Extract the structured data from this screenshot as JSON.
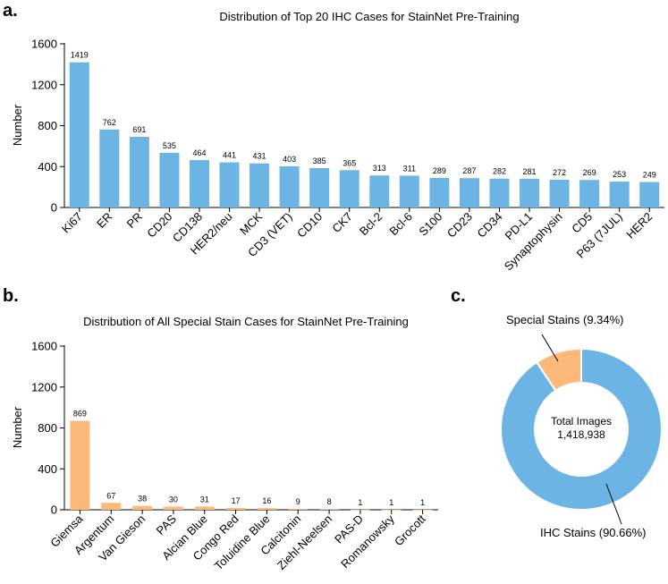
{
  "figure": {
    "panel_a_letter": "a.",
    "panel_b_letter": "b.",
    "panel_c_letter": "c."
  },
  "chart_data": [
    {
      "id": "a",
      "type": "bar",
      "title": "Distribution of Top 20 IHC Cases for StainNet Pre-Training",
      "xlabel": "",
      "ylabel": "Number",
      "ylim": [
        0,
        1600
      ],
      "yticks": [
        0,
        400,
        800,
        1200,
        1600
      ],
      "color": "#6cb4e4",
      "categories": [
        "Ki67",
        "ER",
        "PR",
        "CD20",
        "CD138",
        "HER2/neu",
        "MCK",
        "CD3 (VET)",
        "CD10",
        "CK7",
        "Bcl-2",
        "Bcl-6",
        "S100",
        "CD23",
        "CD34",
        "PD-L1",
        "Synaptophysin",
        "CD5",
        "P63 (7JUL)",
        "HER2"
      ],
      "values": [
        1419,
        762,
        691,
        535,
        464,
        441,
        431,
        403,
        385,
        365,
        313,
        311,
        289,
        287,
        282,
        281,
        272,
        269,
        253,
        249
      ]
    },
    {
      "id": "b",
      "type": "bar",
      "title": "Distribution of All Special Stain Cases for StainNet Pre-Training",
      "xlabel": "",
      "ylabel": "Number",
      "ylim": [
        0,
        1600
      ],
      "yticks": [
        0,
        400,
        800,
        1200,
        1600
      ],
      "color": "#fdb97a",
      "categories": [
        "Giemsa",
        "Argentum",
        "Van Gieson",
        "PAS",
        "Alcian Blue",
        "Congo Red",
        "Toluidine Blue",
        "Calcitonin",
        "Ziehl-Neelsen",
        "PAS-D",
        "Romanowsky",
        "Grocott"
      ],
      "values": [
        869,
        67,
        38,
        30,
        31,
        17,
        16,
        9,
        8,
        1,
        1,
        1
      ]
    },
    {
      "id": "c",
      "type": "pie",
      "style": "donut",
      "center_label": "Total Images",
      "center_value": "1,418,938",
      "slices": [
        {
          "name": "Special Stains",
          "percent": 9.34,
          "color": "#fdb97a",
          "label": "Special Stains (9.34%)"
        },
        {
          "name": "IHC Stains",
          "percent": 90.66,
          "color": "#6cb4e4",
          "label": "IHC Stains (90.66%)"
        }
      ]
    }
  ]
}
